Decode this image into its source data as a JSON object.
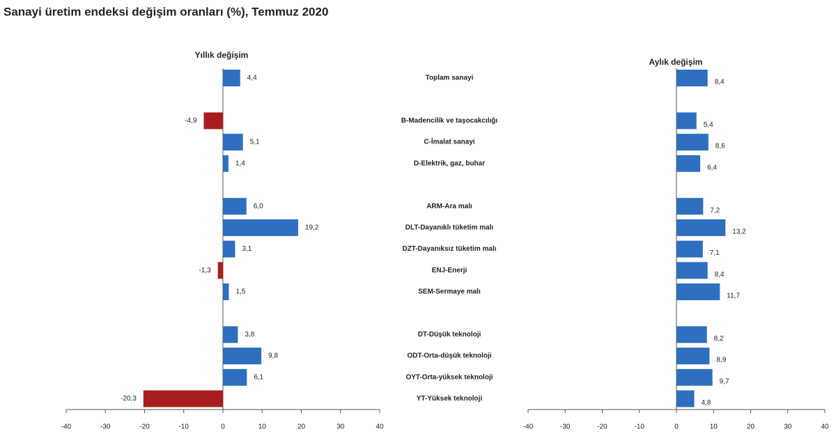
{
  "chart_data": {
    "type": "bar",
    "orientation": "horizontal",
    "title": "Sanayi üretim endeksi  değişim oranları (%), Temmuz 2020",
    "categories": [
      "Toplam sanayi",
      null,
      "B-Madencilik ve taşocakcılığı",
      "C-İmalat sanayi",
      "D-Elektrik, gaz, buhar",
      null,
      "ARM-Ara malı",
      "DLT-Dayanıklı tüketim malı",
      "DZT-Dayanıksız tüketim malı",
      "ENJ-Enerji",
      "SEM-Sermaye malı",
      null,
      "DT-Düşük teknoloji",
      "ODT-Orta-düşük teknoloji",
      "OYT-Orta-yüksek teknoloji",
      "YT-Yüksek teknoloji"
    ],
    "series": [
      {
        "name": "Yıllık değişim",
        "color": "#2e6fbf",
        "negative_color": "#a81e1e",
        "values": [
          4.4,
          null,
          -4.9,
          5.1,
          1.4,
          null,
          6.0,
          19.2,
          3.1,
          -1.3,
          1.5,
          null,
          3.8,
          9.8,
          6.1,
          -20.3
        ],
        "value_labels": [
          "4,4",
          null,
          "-4,9",
          "5,1",
          "1,4",
          null,
          "6,0",
          "19,2",
          "3,1",
          "-1,3",
          "1,5",
          null,
          "3,8",
          "9,8",
          "6,1",
          "-20,3"
        ],
        "xlim": [
          -40,
          40
        ],
        "xticks": [
          -40,
          -30,
          -20,
          -10,
          0,
          10,
          20,
          30,
          40
        ]
      },
      {
        "name": "Aylık değişim",
        "color": "#2e6fbf",
        "negative_color": "#a81e1e",
        "values": [
          8.4,
          null,
          5.4,
          8.6,
          6.4,
          null,
          7.2,
          13.2,
          7.1,
          8.4,
          11.7,
          null,
          8.2,
          8.9,
          9.7,
          4.8
        ],
        "value_labels": [
          "8,4",
          null,
          "5,4",
          "8,6",
          "6,4",
          null,
          "7,2",
          "13,2",
          "7,1",
          "8,4",
          "11,7",
          null,
          "8,2",
          "8,9",
          "9,7",
          "4,8"
        ],
        "xlim": [
          -40,
          40
        ],
        "xticks": [
          -40,
          -30,
          -20,
          -10,
          0,
          10,
          20,
          30,
          40
        ]
      }
    ]
  }
}
